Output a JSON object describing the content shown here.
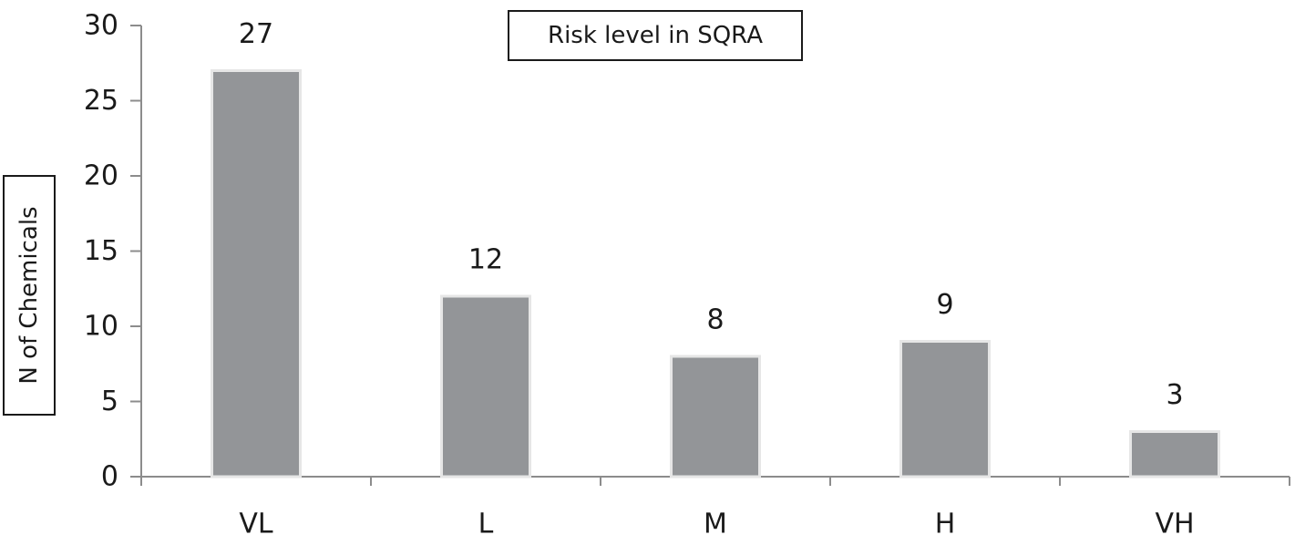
{
  "chart_data": {
    "type": "bar",
    "title": "Risk level in SQRA",
    "xlabel": "",
    "ylabel": "N of Chemicals",
    "categories": [
      "VL",
      "L",
      "M",
      "H",
      "VH"
    ],
    "values": [
      27,
      12,
      8,
      9,
      3
    ],
    "value_labels": [
      "27",
      "12",
      "8",
      "9",
      "3"
    ],
    "ylim": [
      0,
      30
    ],
    "yticks": [
      0,
      5,
      10,
      15,
      20,
      25,
      30
    ],
    "ytick_labels": [
      "0",
      "5",
      "10",
      "15",
      "20",
      "25",
      "30"
    ],
    "grid": false,
    "legend": "none",
    "colors": {
      "bar_fill": "#939598",
      "bar_edge": "#e6e6e6",
      "axis": "#8c8c8c",
      "text": "#1a1a1a"
    }
  }
}
